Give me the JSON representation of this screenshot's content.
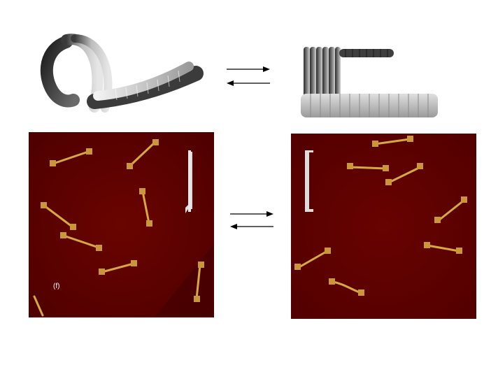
{
  "figure": {
    "panel_label": "(f)"
  },
  "colors": {
    "afm_background": "#5e0000",
    "structure_gold": "#d6a842",
    "model_dark": "#2b2b2b",
    "model_light": "#d9d9d9",
    "arrow": "#000000"
  },
  "models": {
    "left": "curved-bundle-model",
    "right": "folded-rod-model"
  },
  "equilibrium_arrows": [
    "forward",
    "reverse"
  ]
}
